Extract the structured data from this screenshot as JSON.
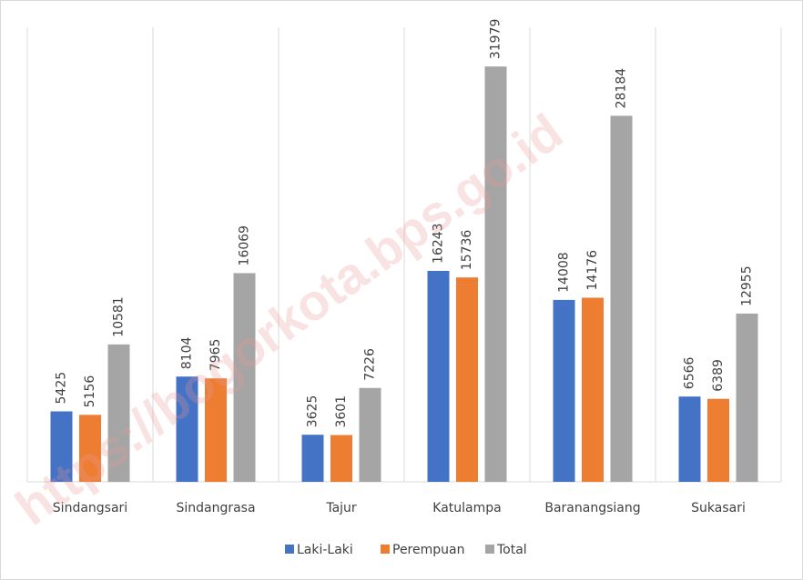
{
  "chart_data": {
    "type": "bar",
    "categories": [
      "Sindangsari",
      "Sindangrasa",
      "Tajur",
      "Katulampa",
      "Baranangsiang",
      "Sukasari"
    ],
    "series": [
      {
        "name": "Laki-Laki",
        "color": "#4472c4",
        "values": [
          5425,
          8104,
          3625,
          16243,
          14008,
          6566
        ]
      },
      {
        "name": "Perempuan",
        "color": "#ed7d31",
        "values": [
          5156,
          7965,
          3601,
          15736,
          14176,
          6389
        ]
      },
      {
        "name": "Total",
        "color": "#a5a5a5",
        "values": [
          10581,
          16069,
          7226,
          31979,
          28184,
          12955
        ]
      }
    ],
    "ylim": [
      0,
      35000
    ],
    "legend": "bottom",
    "watermark": "https://bogorkota.bps.go.id"
  }
}
